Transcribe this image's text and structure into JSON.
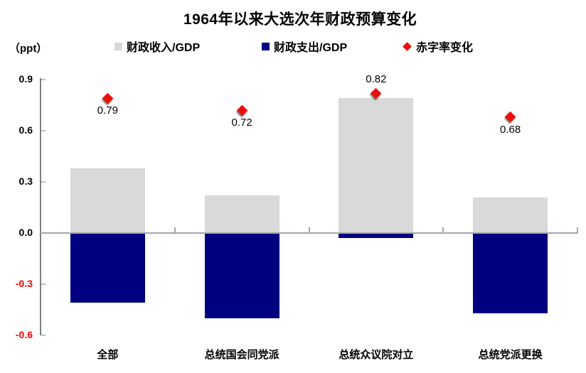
{
  "chart_data": {
    "type": "bar",
    "title": "1964年以来大选次年财政预算变化",
    "ylabel": "（ppt）",
    "categories": [
      "全部",
      "总统国会同党派",
      "总统众议院对立",
      "总统党派更换"
    ],
    "series": [
      {
        "name": "财政收入/GDP",
        "type": "bar",
        "color": "#d9d9d9",
        "values": [
          0.38,
          0.22,
          0.79,
          0.21
        ]
      },
      {
        "name": "财政支出/GDP",
        "type": "bar",
        "color": "#000080",
        "values": [
          -0.41,
          -0.5,
          -0.03,
          -0.47
        ]
      },
      {
        "name": "赤字率变化",
        "type": "scatter",
        "marker": "diamond",
        "color": "#e8120b",
        "values": [
          0.79,
          0.72,
          0.82,
          0.68
        ],
        "labels": [
          "0.79",
          "0.72",
          "0.82",
          "0.68"
        ],
        "label_positions": [
          "below",
          "below",
          "above",
          "below"
        ]
      }
    ],
    "yticks": [
      0.9,
      0.6,
      0.3,
      0.0,
      -0.3,
      -0.6
    ],
    "ylim": [
      -0.6,
      0.9
    ],
    "grid": false,
    "legend_position": "top",
    "colors": {
      "tick_label_positive": "#000000",
      "tick_label_negative": "#ff0000",
      "value_axis_line": "#7f7f7f",
      "zero_line": "#a6a6a6",
      "axis_tick": "#bfbfbf"
    }
  }
}
